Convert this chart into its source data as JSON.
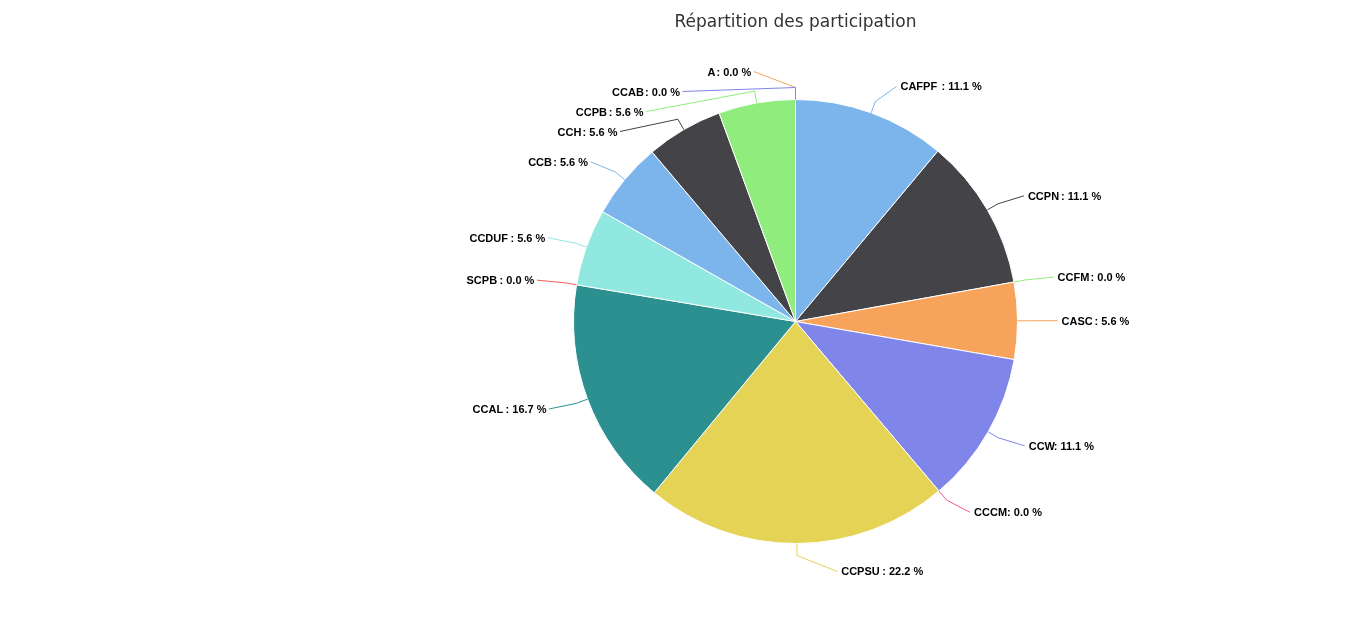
{
  "chart_data": {
    "type": "pie",
    "title": "Répartition des participation",
    "categories": [
      "CAFPF",
      "CCPN",
      "CCFM",
      "CASC",
      "CCW",
      "CCCM",
      "CCPSU",
      "CCAL",
      "SCPB",
      "CCDUF",
      "CCB",
      "CCH",
      "CCPB",
      "A",
      "CCAB"
    ],
    "values": [
      11.1,
      11.1,
      0.0,
      5.6,
      11.1,
      0.0,
      22.2,
      16.7,
      0.0,
      5.6,
      5.6,
      5.6,
      5.6,
      0.0,
      0.0
    ],
    "colors": [
      "#7cb5ec",
      "#434348",
      "#90ed7d",
      "#f7a35c",
      "#8085e9",
      "#f15c80",
      "#e4d354",
      "#2b908f",
      "#f45b5b",
      "#91e8e1",
      "#7cb5ec",
      "#434348",
      "#90ed7d",
      "#f7a35c",
      "#8085e9"
    ],
    "value_labels": [
      ": 11.1 %",
      ": 11.1 %",
      ": 0.0 %",
      ": 5.6 %",
      ": 11.1 %",
      ": 0.0 %",
      ": 22.2 %",
      ": 16.7 %",
      ": 0.0 %",
      ": 5.6 %",
      ": 5.6 %",
      ": 5.6 %",
      ": 5.6 %",
      ": 0.0 %",
      ": 0.0 %"
    ]
  }
}
